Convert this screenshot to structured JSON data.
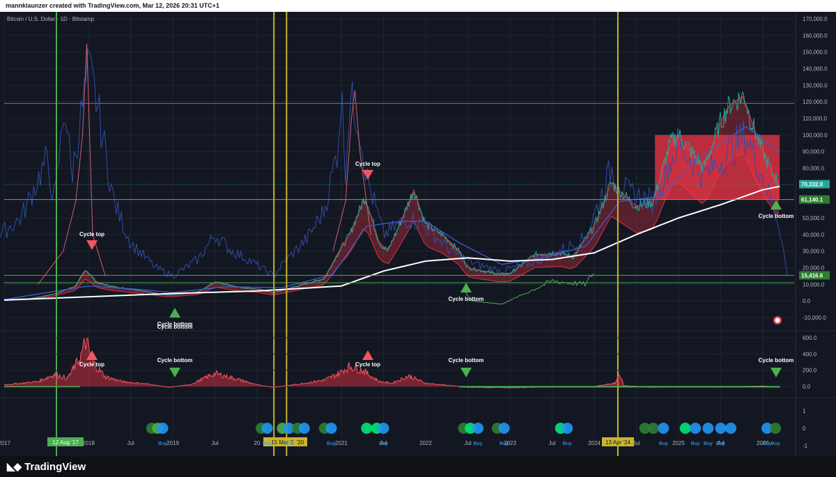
{
  "header": {
    "caption": "mannklaunzer created with TradingView.com, Mar 12, 2026 20:31 UTC+1"
  },
  "symbol": "Bitcoin / U.S. Dollar · 1D · Bitstamp",
  "footer": {
    "brand": "TradingView"
  },
  "colors": {
    "bg": "#131722",
    "grid": "#1f2433",
    "candleUp": "#26a69a",
    "candleDown": "#ef5350",
    "green": "#2e7d32",
    "greenLine": "#4caf50",
    "yellow": "#c9b52d",
    "red": "#f23645",
    "blue": "#2f4ea8",
    "white": "#ffffff"
  },
  "chart_data": [
    {
      "type": "line",
      "title": "",
      "y_scale": "log-like (price)",
      "y_ticks": [
        "170,000.0",
        "160,000.0",
        "150,000.0",
        "140,000.0",
        "130,000.0",
        "120,000.0",
        "110,000.0",
        "100,000.0",
        "90,000.0",
        "80,000.0",
        "70,000.0",
        "60,000.0",
        "50,000.0",
        "40,000.0",
        "30,000.0",
        "20,000.0",
        "10,000.0",
        "0.0",
        "-10,000.0"
      ],
      "price_labels": [
        {
          "value": "70,332.0",
          "color": "#26a69a"
        },
        {
          "value": "61,140.1",
          "color": "#2e7d32"
        },
        {
          "value": "15,416.6",
          "color": "#2e7d32"
        }
      ],
      "x_ticks": [
        "2017",
        "2018",
        "Jul",
        "2019",
        "Jul",
        "20",
        "2021",
        "Jul",
        "2022",
        "Jul",
        "2023",
        "Jul",
        "2024",
        "Jul",
        "2025",
        "Jul",
        "2026"
      ],
      "date_markers": [
        {
          "label": "12 Aug '17",
          "color": "#4caf50"
        },
        {
          "label": "15 Mar '20",
          "color": "#c9b52d"
        },
        {
          "label": "'20",
          "color": "#c9b52d"
        },
        {
          "label": "13 Apr '24",
          "color": "#c9b52d"
        }
      ],
      "annotations": [
        {
          "text": "Cycle top",
          "kind": "top"
        },
        {
          "text": "Cycle bottom",
          "kind": "bottom"
        },
        {
          "text": "Cycle top",
          "kind": "top"
        },
        {
          "text": "Cycle bottom",
          "kind": "bottom"
        },
        {
          "text": "Cycle bottom",
          "kind": "bottom"
        }
      ],
      "hidden_label": "Cycle bottom"
    },
    {
      "type": "area",
      "y_ticks": [
        "600.0",
        "400.0",
        "200.0",
        "0.0"
      ],
      "annotations": [
        {
          "text": "Cycle top"
        },
        {
          "text": "Cycle bottom"
        },
        {
          "text": "Cycle top"
        },
        {
          "text": "Cycle bottom"
        },
        {
          "text": "Cycle bottom"
        }
      ]
    },
    {
      "type": "scatter",
      "y_ticks": [
        "1",
        "0",
        "-1"
      ],
      "buy_label": "Buy",
      "buy_count": 14
    }
  ]
}
